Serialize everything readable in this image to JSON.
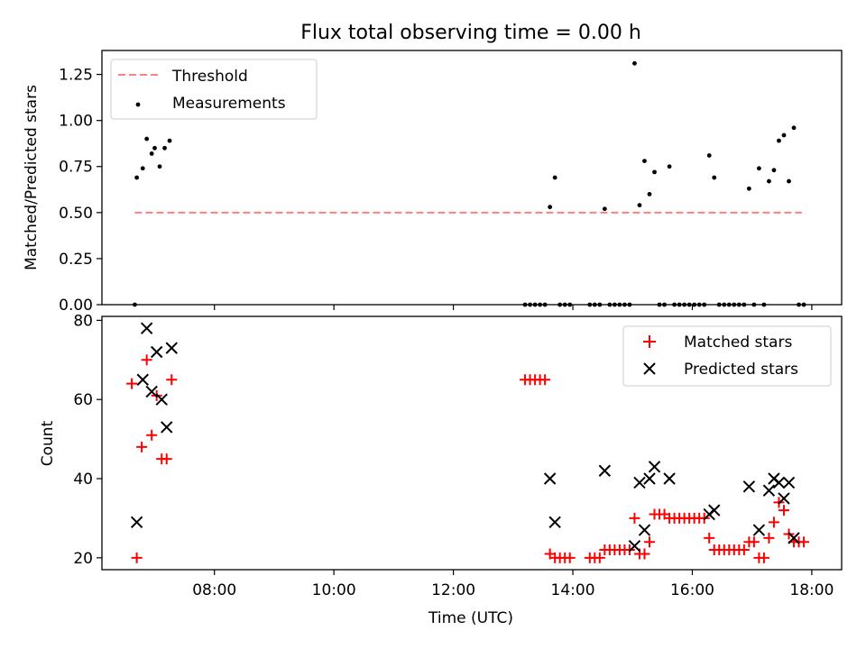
{
  "title": "Flux total observing time = 0.00 h",
  "chart_data": [
    {
      "type": "scatter",
      "ylabel": "Matched/Predicted stars",
      "ylim": [
        0,
        1.38
      ],
      "yticks": [
        0.0,
        0.25,
        0.5,
        0.75,
        1.0,
        1.25
      ],
      "ytick_labels": [
        "0.00",
        "0.25",
        "0.50",
        "0.75",
        "1.00",
        "1.25"
      ],
      "grid": false,
      "legend_position": "upper-left",
      "threshold": {
        "name": "Threshold",
        "y": 0.5,
        "x_range": [
          "06:40",
          "17:50"
        ],
        "color": "#ff8080"
      },
      "series": [
        {
          "name": "Measurements",
          "color": "#000000",
          "points": [
            [
              "06:40",
              0.0
            ],
            [
              "06:42",
              0.69
            ],
            [
              "06:48",
              0.74
            ],
            [
              "06:52",
              0.9
            ],
            [
              "06:57",
              0.82
            ],
            [
              "07:00",
              0.85
            ],
            [
              "07:05",
              0.75
            ],
            [
              "07:10",
              0.85
            ],
            [
              "07:15",
              0.89
            ],
            [
              "13:12",
              0.0
            ],
            [
              "13:17",
              0.0
            ],
            [
              "13:22",
              0.0
            ],
            [
              "13:27",
              0.0
            ],
            [
              "13:32",
              0.0
            ],
            [
              "13:37",
              0.53
            ],
            [
              "13:42",
              0.69
            ],
            [
              "13:47",
              0.0
            ],
            [
              "13:52",
              0.0
            ],
            [
              "13:57",
              0.0
            ],
            [
              "14:17",
              0.0
            ],
            [
              "14:22",
              0.0
            ],
            [
              "14:27",
              0.0
            ],
            [
              "14:32",
              0.52
            ],
            [
              "14:37",
              0.0
            ],
            [
              "14:42",
              0.0
            ],
            [
              "14:47",
              0.0
            ],
            [
              "14:52",
              0.0
            ],
            [
              "14:57",
              0.0
            ],
            [
              "15:02",
              1.31
            ],
            [
              "15:07",
              0.54
            ],
            [
              "15:12",
              0.78
            ],
            [
              "15:17",
              0.6
            ],
            [
              "15:22",
              0.72
            ],
            [
              "15:27",
              0.0
            ],
            [
              "15:32",
              0.0
            ],
            [
              "15:37",
              0.75
            ],
            [
              "15:42",
              0.0
            ],
            [
              "15:47",
              0.0
            ],
            [
              "15:52",
              0.0
            ],
            [
              "15:57",
              0.0
            ],
            [
              "16:02",
              0.0
            ],
            [
              "16:07",
              0.0
            ],
            [
              "16:12",
              0.0
            ],
            [
              "16:17",
              0.81
            ],
            [
              "16:22",
              0.69
            ],
            [
              "16:27",
              0.0
            ],
            [
              "16:32",
              0.0
            ],
            [
              "16:37",
              0.0
            ],
            [
              "16:42",
              0.0
            ],
            [
              "16:47",
              0.0
            ],
            [
              "16:52",
              0.0
            ],
            [
              "16:57",
              0.63
            ],
            [
              "17:02",
              0.0
            ],
            [
              "17:07",
              0.74
            ],
            [
              "17:12",
              0.0
            ],
            [
              "17:17",
              0.67
            ],
            [
              "17:22",
              0.73
            ],
            [
              "17:27",
              0.89
            ],
            [
              "17:32",
              0.92
            ],
            [
              "17:37",
              0.67
            ],
            [
              "17:42",
              0.96
            ],
            [
              "17:47",
              0.0
            ],
            [
              "17:52",
              0.0
            ]
          ]
        }
      ]
    },
    {
      "type": "scatter",
      "xlabel": "Time (UTC)",
      "ylabel": "Count",
      "ylim": [
        17,
        81
      ],
      "yticks": [
        20,
        40,
        60,
        80
      ],
      "ytick_labels": [
        "20",
        "40",
        "60",
        "80"
      ],
      "xlim": [
        "06:07",
        "18:30"
      ],
      "xticks": [
        "08:00",
        "10:00",
        "12:00",
        "14:00",
        "16:00",
        "18:00"
      ],
      "grid": false,
      "legend_position": "upper-right",
      "series": [
        {
          "name": "Matched stars",
          "marker": "plus",
          "color": "#ff0000",
          "points": [
            [
              "06:37",
              64
            ],
            [
              "06:42",
              20
            ],
            [
              "06:47",
              48
            ],
            [
              "06:52",
              70
            ],
            [
              "06:57",
              51
            ],
            [
              "07:02",
              61
            ],
            [
              "07:07",
              45
            ],
            [
              "07:12",
              45
            ],
            [
              "07:17",
              65
            ],
            [
              "13:12",
              65
            ],
            [
              "13:17",
              65
            ],
            [
              "13:22",
              65
            ],
            [
              "13:27",
              65
            ],
            [
              "13:32",
              65
            ],
            [
              "13:37",
              21
            ],
            [
              "13:42",
              20
            ],
            [
              "13:47",
              20
            ],
            [
              "13:52",
              20
            ],
            [
              "13:57",
              20
            ],
            [
              "14:17",
              20
            ],
            [
              "14:22",
              20
            ],
            [
              "14:27",
              20
            ],
            [
              "14:32",
              22
            ],
            [
              "14:37",
              22
            ],
            [
              "14:42",
              22
            ],
            [
              "14:47",
              22
            ],
            [
              "14:52",
              22
            ],
            [
              "14:57",
              22
            ],
            [
              "15:02",
              30
            ],
            [
              "15:07",
              21
            ],
            [
              "15:12",
              21
            ],
            [
              "15:17",
              24
            ],
            [
              "15:22",
              31
            ],
            [
              "15:27",
              31
            ],
            [
              "15:32",
              31
            ],
            [
              "15:37",
              30
            ],
            [
              "15:42",
              30
            ],
            [
              "15:47",
              30
            ],
            [
              "15:52",
              30
            ],
            [
              "15:57",
              30
            ],
            [
              "16:02",
              30
            ],
            [
              "16:07",
              30
            ],
            [
              "16:12",
              30
            ],
            [
              "16:17",
              25
            ],
            [
              "16:22",
              22
            ],
            [
              "16:27",
              22
            ],
            [
              "16:32",
              22
            ],
            [
              "16:37",
              22
            ],
            [
              "16:42",
              22
            ],
            [
              "16:47",
              22
            ],
            [
              "16:52",
              22
            ],
            [
              "16:57",
              24
            ],
            [
              "17:02",
              24
            ],
            [
              "17:07",
              20
            ],
            [
              "17:12",
              20
            ],
            [
              "17:17",
              25
            ],
            [
              "17:22",
              29
            ],
            [
              "17:27",
              34
            ],
            [
              "17:32",
              32
            ],
            [
              "17:37",
              26
            ],
            [
              "17:42",
              24
            ],
            [
              "17:47",
              24
            ],
            [
              "17:52",
              24
            ]
          ]
        },
        {
          "name": "Predicted stars",
          "marker": "x",
          "color": "#000000",
          "points": [
            [
              "06:42",
              29
            ],
            [
              "06:48",
              65
            ],
            [
              "06:52",
              78
            ],
            [
              "06:57",
              62
            ],
            [
              "07:02",
              72
            ],
            [
              "07:07",
              60
            ],
            [
              "07:12",
              53
            ],
            [
              "07:17",
              73
            ],
            [
              "13:37",
              40
            ],
            [
              "13:42",
              29
            ],
            [
              "14:32",
              42
            ],
            [
              "15:02",
              23
            ],
            [
              "15:07",
              39
            ],
            [
              "15:12",
              27
            ],
            [
              "15:17",
              40
            ],
            [
              "15:22",
              43
            ],
            [
              "15:37",
              40
            ],
            [
              "16:17",
              31
            ],
            [
              "16:22",
              32
            ],
            [
              "16:57",
              38
            ],
            [
              "17:07",
              27
            ],
            [
              "17:17",
              37
            ],
            [
              "17:22",
              40
            ],
            [
              "17:27",
              39
            ],
            [
              "17:32",
              35
            ],
            [
              "17:37",
              39
            ],
            [
              "17:42",
              25
            ]
          ]
        }
      ]
    }
  ]
}
